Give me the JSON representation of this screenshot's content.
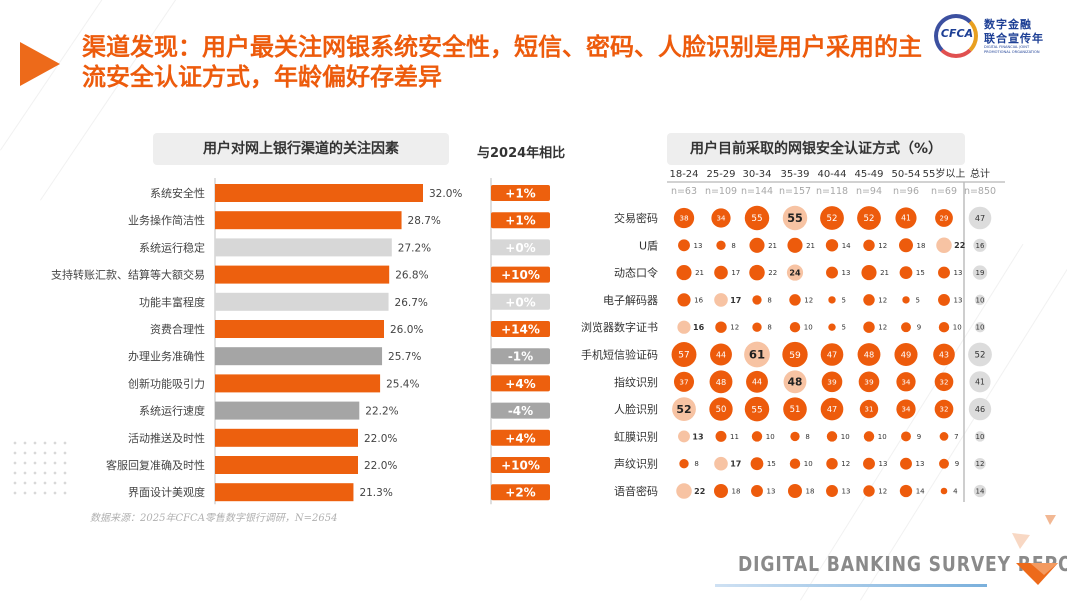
{
  "header": {
    "title": "渠道发现：用户最关注网银系统安全性，短信、密码、人脸识别是用户采用的主流安全认证方式，年龄偏好存差异"
  },
  "logo": {
    "mark": "CFCA",
    "line1": "数字金融",
    "line2": "联合宣传年",
    "line3": "DIGITAL FINANCIAL JOINT PROMOTIONAL ORGANIZATION"
  },
  "left_panel": {
    "header": "用户对网上银行渠道的关注因素"
  },
  "compare_panel": {
    "header": "与2024年相比"
  },
  "right_panel": {
    "header": "用户目前采取的网银安全认证方式（%）"
  },
  "source": "数据来源：2025年CFCA零售数字银行调研，N=2654",
  "footer": {
    "text": "DIGITAL BANKING SURVEY REPORT"
  },
  "colors": {
    "accent": "#ed5b0c",
    "bar_orange": "#ed600e",
    "bar_light_gray": "#d7d7d7",
    "bar_dark_gray": "#a5a5a5",
    "bubble_dark": "#ed5b0c",
    "bubble_light": "#f7c3a3",
    "bubble_total": "#dcdcdc"
  },
  "chart_data": [
    {
      "type": "bar",
      "orientation": "horizontal",
      "title": "用户对网上银行渠道的关注因素",
      "categories": [
        "系统安全性",
        "业务操作简洁性",
        "系统运行稳定",
        "支持转账汇款、结算等大额交易",
        "功能丰富程度",
        "资费合理性",
        "办理业务准确性",
        "创新功能吸引力",
        "系统运行速度",
        "活动推送及时性",
        "客服回复准确及时性",
        "界面设计美观度"
      ],
      "values": [
        32.0,
        28.7,
        27.2,
        26.8,
        26.7,
        26.0,
        25.7,
        25.4,
        22.2,
        22.0,
        22.0,
        21.3
      ],
      "value_labels": [
        "32.0%",
        "28.7%",
        "27.2%",
        "26.8%",
        "26.7%",
        "26.0%",
        "25.7%",
        "25.4%",
        "22.2%",
        "22.0%",
        "22.0%",
        "21.3%"
      ],
      "bar_colors": [
        "orange",
        "orange",
        "light_gray",
        "orange",
        "light_gray",
        "orange",
        "dark_gray",
        "orange",
        "dark_gray",
        "orange",
        "orange",
        "orange"
      ],
      "xlim": [
        0,
        32.0
      ],
      "grid": false,
      "comparison": {
        "title": "与2024年相比",
        "labels": [
          "+1%",
          "+1%",
          "+0%",
          "+10%",
          "+0%",
          "+14%",
          "-1%",
          "+4%",
          "-4%",
          "+4%",
          "+10%",
          "+2%"
        ],
        "colors": [
          "orange",
          "orange",
          "light_gray",
          "orange",
          "light_gray",
          "orange",
          "dark_gray",
          "orange",
          "dark_gray",
          "orange",
          "orange",
          "orange"
        ]
      }
    },
    {
      "type": "bubble_table",
      "title": "用户目前采取的网银安全认证方式（%）",
      "columns": [
        "18-24",
        "25-29",
        "30-34",
        "35-39",
        "40-44",
        "45-49",
        "50-54",
        "55岁以上",
        "总计"
      ],
      "sample_sizes": [
        "n=63",
        "n=109",
        "n=144",
        "n=157",
        "n=118",
        "n=94",
        "n=96",
        "n=69",
        "n=850"
      ],
      "rows": [
        "交易密码",
        "U盾",
        "动态口令",
        "电子解码器",
        "浏览器数字证书",
        "手机短信验证码",
        "指纹识别",
        "人脸识别",
        "虹膜识别",
        "声纹识别",
        "语音密码"
      ],
      "values": [
        [
          38,
          34,
          55,
          55,
          52,
          52,
          41,
          29,
          47
        ],
        [
          13,
          8,
          21,
          21,
          14,
          12,
          18,
          22,
          16
        ],
        [
          21,
          17,
          22,
          24,
          13,
          21,
          15,
          13,
          19
        ],
        [
          16,
          17,
          8,
          12,
          5,
          12,
          5,
          13,
          10
        ],
        [
          16,
          12,
          8,
          10,
          5,
          12,
          9,
          10,
          10
        ],
        [
          57,
          44,
          61,
          59,
          47,
          48,
          49,
          43,
          52
        ],
        [
          37,
          48,
          44,
          48,
          39,
          39,
          34,
          32,
          41
        ],
        [
          52,
          50,
          55,
          51,
          47,
          31,
          34,
          32,
          46
        ],
        [
          13,
          11,
          10,
          8,
          10,
          10,
          9,
          7,
          10
        ],
        [
          8,
          17,
          15,
          10,
          12,
          13,
          13,
          9,
          12
        ],
        [
          22,
          18,
          13,
          18,
          13,
          12,
          14,
          4,
          14
        ]
      ],
      "highlight_cells": [
        [
          0,
          3
        ],
        [
          1,
          7
        ],
        [
          2,
          3
        ],
        [
          3,
          1
        ],
        [
          4,
          0
        ],
        [
          5,
          2
        ],
        [
          6,
          3
        ],
        [
          7,
          0
        ],
        [
          8,
          0
        ],
        [
          9,
          1
        ],
        [
          10,
          0
        ]
      ],
      "grid": false
    }
  ]
}
